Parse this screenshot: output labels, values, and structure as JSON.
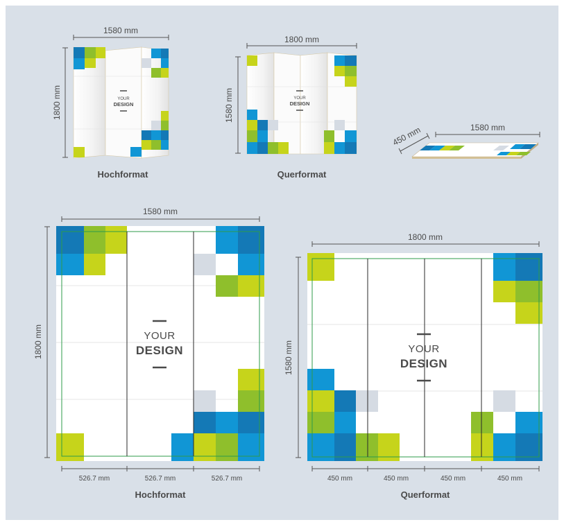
{
  "colors": {
    "background": "#d9e0e8",
    "dark_blue": "#1479b6",
    "blue": "#1196d5",
    "green": "#8fbf2c",
    "lime": "#c6d41b",
    "light_gray": "#d5dbe3",
    "safe_line": "#2e9b4a",
    "fold_line": "#2a2a2a"
  },
  "icons": {
    "rolled_mockup": "rolled-banner-mockup-icon"
  },
  "previews": {
    "portrait": {
      "width_label": "1580 mm",
      "height_label": "1800 mm",
      "caption": "Hochformat",
      "your": "YOUR",
      "design": "DESIGN"
    },
    "landscape": {
      "width_label": "1800 mm",
      "height_label": "1580 mm",
      "caption": "Querformat",
      "your": "YOUR",
      "design": "DESIGN"
    },
    "rolled": {
      "width_label": "1580 mm",
      "depth_label": "450 mm"
    }
  },
  "templates": {
    "portrait": {
      "width_label": "1580 mm",
      "height_label": "1800 mm",
      "caption": "Hochformat",
      "your": "YOUR",
      "design": "DESIGN",
      "segments": [
        "526.7 mm",
        "526.7 mm",
        "526.7 mm"
      ]
    },
    "landscape": {
      "width_label": "1800 mm",
      "height_label": "1580 mm",
      "caption": "Querformat",
      "your": "YOUR",
      "design": "DESIGN",
      "segments": [
        "450 mm",
        "450 mm",
        "450 mm",
        "450 mm"
      ]
    }
  }
}
